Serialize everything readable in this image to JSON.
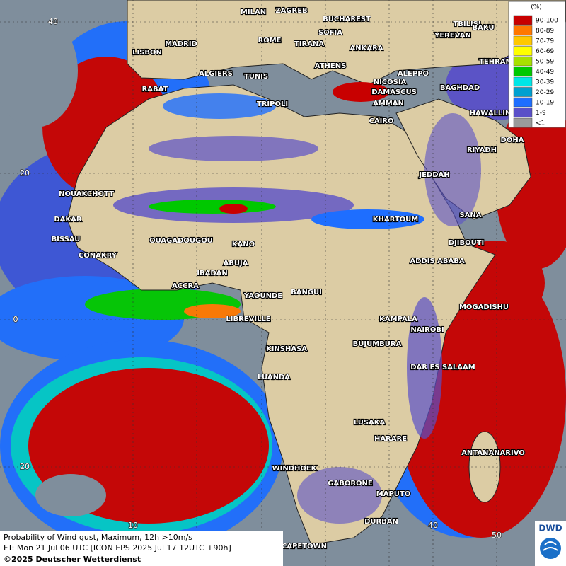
{
  "map": {
    "cities": [
      "MILAN",
      "ZAGREB",
      "BUCHAREST",
      "TBILISI",
      "BAKU",
      "ROME",
      "SOFIA",
      "YEREVAN",
      "MADRID",
      "TIRANA",
      "ANKARA",
      "LISBON",
      "TEHRAN",
      "ATHENS",
      "ALEPPO",
      "ALGIERS",
      "TUNIS",
      "NICOSIA",
      "BAGHDAD",
      "RABAT",
      "DAMASCUS",
      "TRIPOLI",
      "AMMAN",
      "HAWALLIN",
      "CAIRO",
      "DOHA",
      "RIYADH",
      "JEDDAH",
      "NOUAKCHOTT",
      "SANA",
      "KHARTOUM",
      "DAKAR",
      "BISSAU",
      "DJIBOUTI",
      "OUAGADOUGOU",
      "KANO",
      "CONAKRY",
      "ADDIS ABABA",
      "ABUJA",
      "IBADAN",
      "ACCRA",
      "YAOUNDE",
      "BANGUI",
      "MOGADISHU",
      "LIBREVILLE",
      "KAMPALA",
      "NAIROBI",
      "BUJUMBURA",
      "KINSHASA",
      "DAR ES SALAAM",
      "LUANDA",
      "LUSAKA",
      "HARARE",
      "ANTANANARIVO",
      "WINDHOEK",
      "GABORONE",
      "MAPUTO",
      "DURBAN",
      "CAPETOWN"
    ],
    "grid_labels": [
      "40",
      "20",
      "0",
      "20",
      "10",
      "40",
      "50"
    ]
  },
  "legend": {
    "title": "(%)",
    "entries": [
      {
        "label": "90-100",
        "color": "#c80000"
      },
      {
        "label": "80-89",
        "color": "#ff7800"
      },
      {
        "label": "70-79",
        "color": "#ffc800"
      },
      {
        "label": "60-69",
        "color": "#ffff00"
      },
      {
        "label": "50-59",
        "color": "#a8e000"
      },
      {
        "label": "40-49",
        "color": "#00c800"
      },
      {
        "label": "30-39",
        "color": "#00e6e6"
      },
      {
        "label": "20-29",
        "color": "#00a0d0"
      },
      {
        "label": "10-19",
        "color": "#1e6eff"
      },
      {
        "label": "1-9",
        "color": "#5a50c8"
      },
      {
        "label": "<1",
        "color": "#9a9a9a"
      }
    ]
  },
  "footer": {
    "line1": "Probability of Wind gust, Maximum, 12h >10m/s",
    "line2": "FT: Mon 21 Jul 06 UTC [ICON EPS 2025 Jul 17 12UTC +90h]",
    "line3": "©2025 Deutscher Wetterdienst"
  },
  "logo": "DWD"
}
